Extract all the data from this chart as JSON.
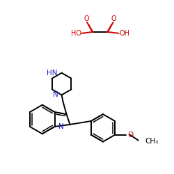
{
  "bg_color": "#ffffff",
  "black": "#000000",
  "blue": "#2222cc",
  "red": "#cc0000",
  "figsize": [
    2.5,
    2.5
  ],
  "dpi": 100,
  "xlim": [
    0,
    250
  ],
  "ylim": [
    0,
    250
  ]
}
